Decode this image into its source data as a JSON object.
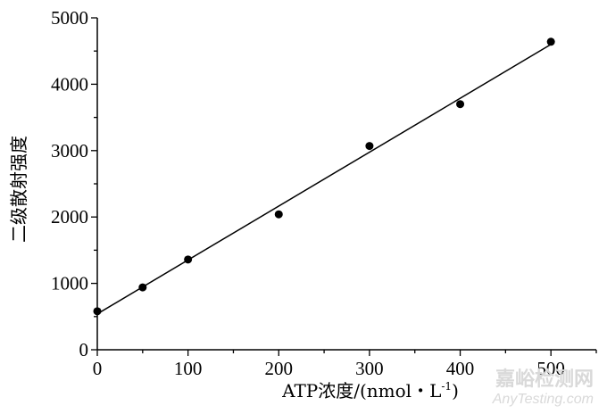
{
  "chart_data": {
    "type": "scatter",
    "xlabel": "ATP浓度/(nmol・L",
    "xlabel_sup": "-1",
    "xlabel_end": ")",
    "ylabel": "二级散射强度",
    "xlim": [
      0,
      550
    ],
    "ylim": [
      0,
      5000
    ],
    "x_ticks": [
      0,
      100,
      200,
      300,
      400,
      500
    ],
    "y_ticks": [
      0,
      1000,
      2000,
      3000,
      4000,
      5000
    ],
    "x_tick_labels": [
      "0",
      "100",
      "200",
      "300",
      "400",
      "500"
    ],
    "y_tick_labels": [
      "0",
      "1000",
      "2000",
      "3000",
      "4000",
      "5000"
    ],
    "points": [
      {
        "x": 0,
        "y": 580
      },
      {
        "x": 50,
        "y": 940
      },
      {
        "x": 100,
        "y": 1360
      },
      {
        "x": 200,
        "y": 2040
      },
      {
        "x": 300,
        "y": 3070
      },
      {
        "x": 400,
        "y": 3700
      },
      {
        "x": 500,
        "y": 4640
      }
    ],
    "fit_line": {
      "x0": 0,
      "y0": 540,
      "x1": 500,
      "y1": 4600
    },
    "grid": false,
    "legend": "none",
    "point_color": "#000000",
    "line_color": "#000000"
  },
  "watermark": {
    "cn": "嘉峪检测网",
    "en": "AnyTesting.com"
  }
}
